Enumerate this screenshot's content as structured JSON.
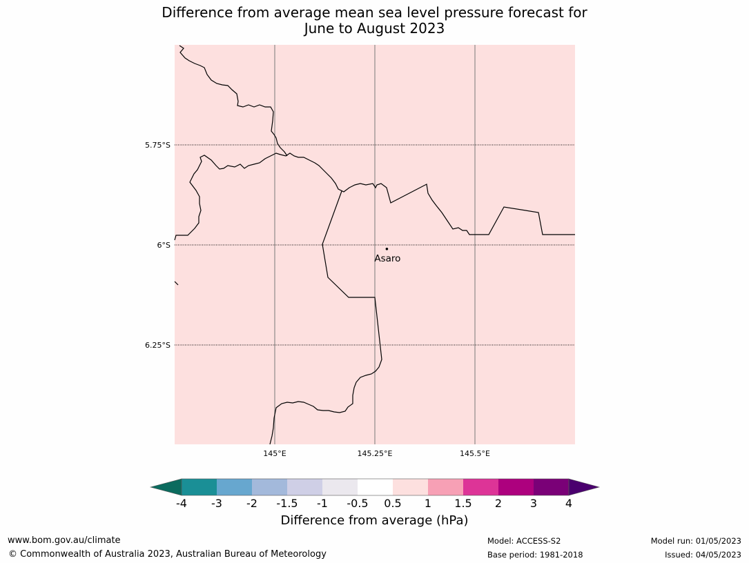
{
  "title": {
    "line1": "Difference from average mean sea level pressure forecast for",
    "line2": "June to August 2023"
  },
  "map": {
    "fill_color": "#fde0df",
    "latitude_labels": [
      "5.75°S",
      "6°S",
      "6.25°S"
    ],
    "longitude_labels": [
      "145°E",
      "145.25°E",
      "145.5°E"
    ],
    "place": {
      "name": "Asaro",
      "lon": 145.28,
      "lat": -6.01
    }
  },
  "colorbar": {
    "title": "Difference from average (hPa)",
    "tick_labels": [
      "-4",
      "-3",
      "-2",
      "-1.5",
      "-1",
      "-0.5",
      "0.5",
      "1",
      "1.5",
      "2",
      "3",
      "4"
    ],
    "under_color": "#0b6b5e",
    "over_color": "#4a006e",
    "colors": [
      "#1a8f96",
      "#67a7cf",
      "#a3b9db",
      "#cfcfe6",
      "#ebe8ee",
      "#ffffff",
      "#fde0df",
      "#f7a0b5",
      "#dd3497",
      "#ad017e",
      "#7a0177"
    ]
  },
  "footer": {
    "website": "www.bom.gov.au/climate",
    "copyright": "© Commonwealth of Australia 2023, Australian Bureau of Meteorology",
    "model": "Model: ACCESS-S2",
    "base_period": "Base period: 1981-2018",
    "model_run": "Model run: 01/05/2023",
    "issued": "Issued: 04/05/2023"
  }
}
